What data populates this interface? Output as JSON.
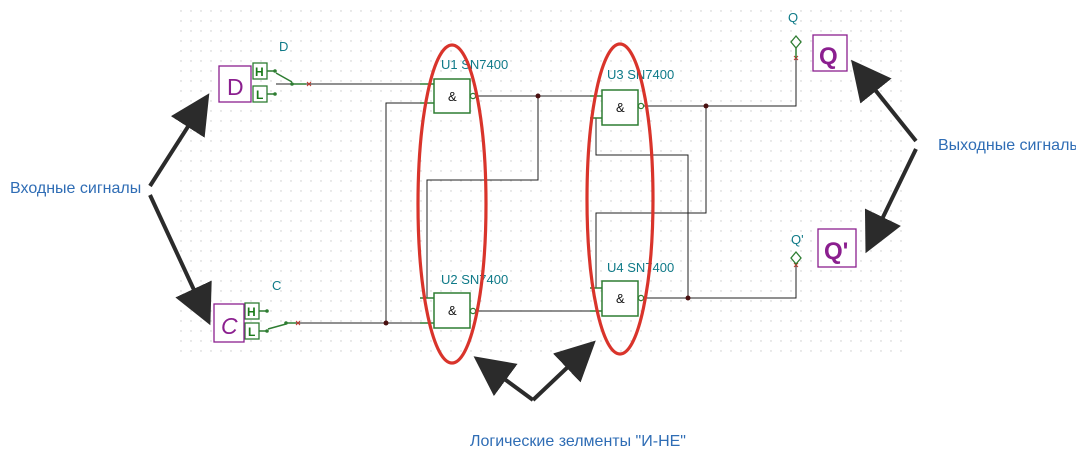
{
  "inputs": {
    "d": {
      "box": "D",
      "label": "D",
      "high": "H",
      "low": "L"
    },
    "c": {
      "box": "C",
      "label": "C",
      "high": "H",
      "low": "L"
    }
  },
  "outputs": {
    "q": {
      "box": "Q",
      "label": "Q"
    },
    "qn": {
      "box": "Q'",
      "label": "Q'"
    }
  },
  "gates": {
    "u1": {
      "label": "U1 SN7400",
      "symbol": "&"
    },
    "u2": {
      "label": "U2 SN7400",
      "symbol": "&"
    },
    "u3": {
      "label": "U3 SN7400",
      "symbol": "&"
    },
    "u4": {
      "label": "U4 SN7400",
      "symbol": "&"
    }
  },
  "annotations": {
    "inputs": "Входные сигналы",
    "outputs": "Выходные сигналы",
    "gates": "Логические зелменты \"И-НЕ\""
  },
  "colors": {
    "wire": "#222222",
    "gate": "#2e7d32",
    "highlight": "#d9342b",
    "annotation": "#2f6db5",
    "io_box": "#8b1f8f",
    "label": "#0f7a88"
  }
}
